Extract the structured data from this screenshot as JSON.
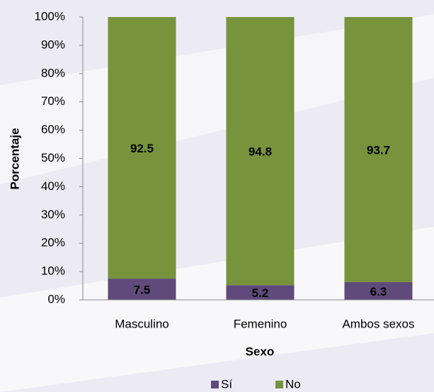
{
  "chart_data": {
    "type": "stacked_bar",
    "y_label": "Porcentaje",
    "x_label": "Sexo",
    "categories": [
      "Masculino",
      "Femenino",
      "Ambos sexos"
    ],
    "series": [
      {
        "name": "Sí",
        "color": "#604a7b",
        "values": [
          7.5,
          5.2,
          6.3
        ]
      },
      {
        "name": "No",
        "color": "#77933c",
        "values": [
          92.5,
          94.8,
          93.7
        ]
      }
    ],
    "ylim": [
      0,
      100
    ],
    "yticks": [
      {
        "value": 0,
        "label": "0%"
      },
      {
        "value": 10,
        "label": "10%"
      },
      {
        "value": 20,
        "label": "20%"
      },
      {
        "value": 30,
        "label": "30%"
      },
      {
        "value": 40,
        "label": "40%"
      },
      {
        "value": 50,
        "label": "50%"
      },
      {
        "value": 60,
        "label": "60%"
      },
      {
        "value": 70,
        "label": "70%"
      },
      {
        "value": 80,
        "label": "80%"
      },
      {
        "value": 90,
        "label": "90%"
      },
      {
        "value": 100,
        "label": "100%"
      }
    ],
    "legend": "bottom"
  }
}
